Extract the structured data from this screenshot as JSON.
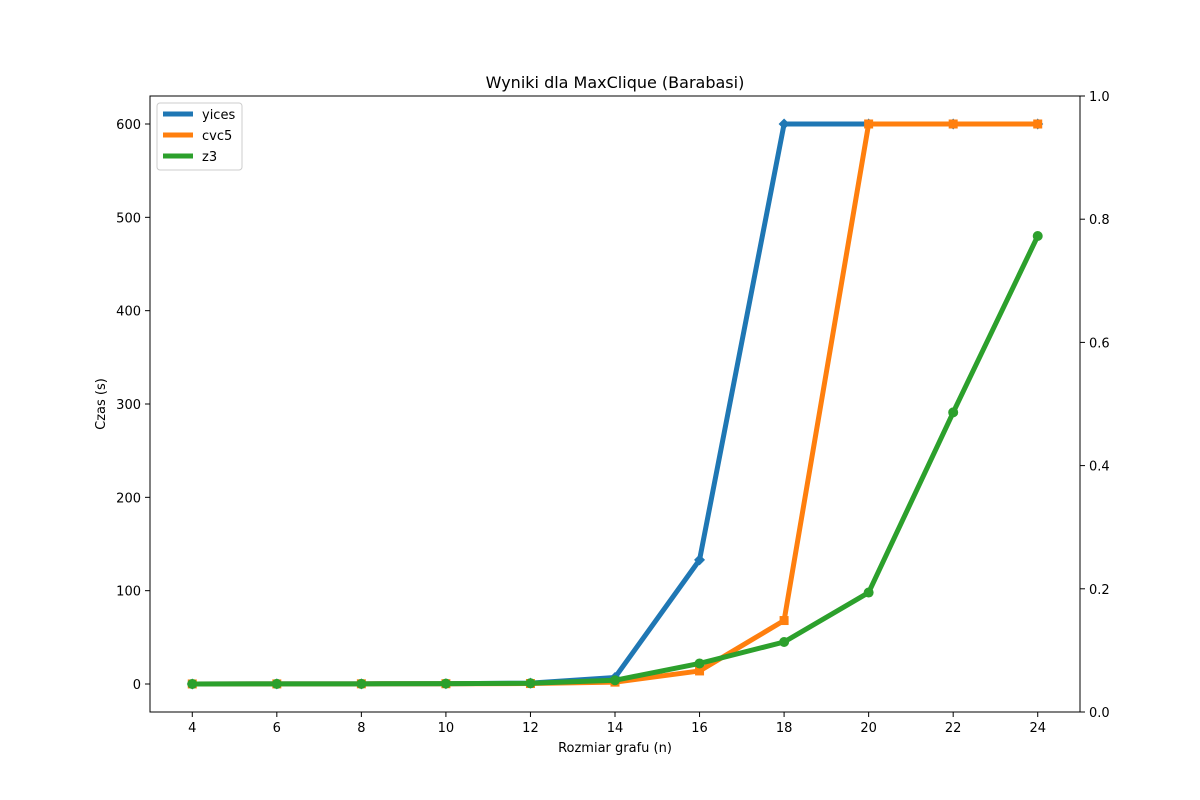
{
  "chart_data": {
    "type": "line",
    "title": "Wyniki dla MaxClique (Barabasi)",
    "xlabel": "Rozmiar grafu (n)",
    "ylabel": "Czas (s)",
    "x": [
      4,
      6,
      8,
      10,
      12,
      14,
      16,
      18,
      20,
      22,
      24
    ],
    "xlim": [
      3,
      25
    ],
    "ylim": [
      -30,
      630
    ],
    "y_ticks": [
      0,
      100,
      200,
      300,
      400,
      500,
      600
    ],
    "secondary_ylim": [
      0.0,
      1.0
    ],
    "secondary_y_ticks": [
      "0.0",
      "0.2",
      "0.4",
      "0.6",
      "0.8",
      "1.0"
    ],
    "grid": false,
    "legend_position": "top-left",
    "series": [
      {
        "name": "yices",
        "color": "#1f77b4",
        "marker": "diamond",
        "values": [
          0.05,
          0.1,
          0.2,
          0.3,
          1.0,
          7.0,
          133,
          600,
          600,
          600,
          600
        ]
      },
      {
        "name": "cvc5",
        "color": "#ff7f0e",
        "marker": "square",
        "values": [
          0.05,
          0.1,
          0.2,
          0.3,
          0.5,
          2.0,
          14,
          68,
          600,
          600,
          600
        ]
      },
      {
        "name": "z3",
        "color": "#2ca02c",
        "marker": "circle",
        "values": [
          0.05,
          0.1,
          0.2,
          0.4,
          0.8,
          4.0,
          22,
          45,
          98,
          291,
          480
        ]
      }
    ]
  }
}
